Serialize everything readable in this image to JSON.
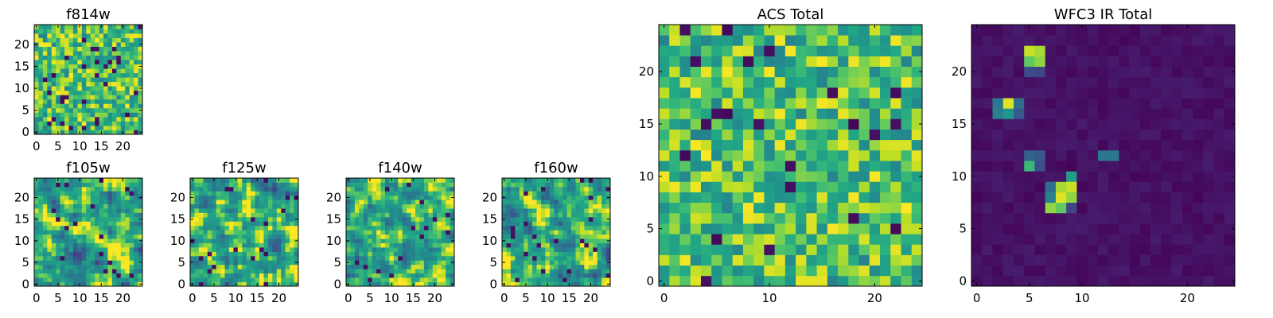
{
  "chart_data": [
    {
      "id": "f814w",
      "type": "heatmap",
      "title": "f814w",
      "colormap": "viridis",
      "grid_size": [
        25,
        25
      ],
      "xlim": [
        -0.5,
        24.5
      ],
      "ylim": [
        -0.5,
        24.5
      ],
      "xticks": [
        0,
        5,
        10,
        15,
        20
      ],
      "yticks": [
        0,
        5,
        10,
        15,
        20
      ],
      "pattern": "uniform noise, mostly green-yellow",
      "seed": 11,
      "values": []
    },
    {
      "id": "f105w",
      "type": "heatmap",
      "title": "f105w",
      "colormap": "viridis",
      "grid_size": [
        25,
        25
      ],
      "xlim": [
        -0.5,
        24.5
      ],
      "ylim": [
        -0.5,
        24.5
      ],
      "xticks": [
        0,
        5,
        10,
        15,
        20
      ],
      "yticks": [
        0,
        5,
        10,
        15,
        20
      ],
      "pattern": "smooth correlated noise",
      "seed": 21,
      "values": []
    },
    {
      "id": "f125w",
      "type": "heatmap",
      "title": "f125w",
      "colormap": "viridis",
      "grid_size": [
        25,
        25
      ],
      "xlim": [
        -0.5,
        24.5
      ],
      "ylim": [
        -0.5,
        24.5
      ],
      "xticks": [
        0,
        5,
        10,
        15,
        20
      ],
      "yticks": [
        0,
        5,
        10,
        15,
        20
      ],
      "pattern": "smooth correlated noise",
      "seed": 31,
      "values": []
    },
    {
      "id": "f140w",
      "type": "heatmap",
      "title": "f140w",
      "colormap": "viridis",
      "grid_size": [
        25,
        25
      ],
      "xlim": [
        -0.5,
        24.5
      ],
      "ylim": [
        -0.5,
        24.5
      ],
      "xticks": [
        0,
        5,
        10,
        15,
        20
      ],
      "yticks": [
        0,
        5,
        10,
        15,
        20
      ],
      "pattern": "smooth correlated noise",
      "seed": 41,
      "values": []
    },
    {
      "id": "f160w",
      "type": "heatmap",
      "title": "f160w",
      "colormap": "viridis",
      "grid_size": [
        25,
        25
      ],
      "xlim": [
        -0.5,
        24.5
      ],
      "ylim": [
        -0.5,
        24.5
      ],
      "xticks": [
        0,
        5,
        10,
        15,
        20
      ],
      "yticks": [
        0,
        5,
        10,
        15,
        20
      ],
      "pattern": "smooth correlated noise",
      "seed": 51,
      "values": []
    },
    {
      "id": "acs_total",
      "type": "heatmap",
      "title": "ACS Total",
      "colormap": "viridis",
      "grid_size": [
        25,
        25
      ],
      "xlim": [
        -0.5,
        24.5
      ],
      "ylim": [
        -0.5,
        24.5
      ],
      "xticks": [
        0,
        10,
        20
      ],
      "yticks": [
        0,
        5,
        10,
        15,
        20
      ],
      "pattern": "uniform noise, mostly green-yellow",
      "seed": 61,
      "values": []
    },
    {
      "id": "wfc3_ir_total",
      "type": "heatmap",
      "title": "WFC3 IR Total",
      "colormap": "viridis",
      "grid_size": [
        25,
        25
      ],
      "xlim": [
        -0.5,
        24.5
      ],
      "ylim": [
        -0.5,
        24.5
      ],
      "xticks": [
        0,
        5,
        10,
        20
      ],
      "yticks": [
        0,
        5,
        10,
        15,
        20
      ],
      "pattern": "dark background with bright sources",
      "seed": 71,
      "values": [],
      "bright_pixels": [
        {
          "x": 5,
          "y": 22,
          "v": 0.95
        },
        {
          "x": 6,
          "y": 22,
          "v": 0.92
        },
        {
          "x": 5,
          "y": 21,
          "v": 0.85
        },
        {
          "x": 6,
          "y": 21,
          "v": 0.9
        },
        {
          "x": 5,
          "y": 20,
          "v": 0.3
        },
        {
          "x": 6,
          "y": 20,
          "v": 0.25
        },
        {
          "x": 3,
          "y": 17,
          "v": 0.97
        },
        {
          "x": 2,
          "y": 17,
          "v": 0.5
        },
        {
          "x": 4,
          "y": 17,
          "v": 0.45
        },
        {
          "x": 3,
          "y": 16,
          "v": 0.65
        },
        {
          "x": 2,
          "y": 16,
          "v": 0.55
        },
        {
          "x": 4,
          "y": 16,
          "v": 0.35
        },
        {
          "x": 5,
          "y": 12,
          "v": 0.4
        },
        {
          "x": 6,
          "y": 12,
          "v": 0.35
        },
        {
          "x": 5,
          "y": 11,
          "v": 0.8
        },
        {
          "x": 6,
          "y": 11,
          "v": 0.3
        },
        {
          "x": 12,
          "y": 12,
          "v": 0.5
        },
        {
          "x": 13,
          "y": 12,
          "v": 0.5
        },
        {
          "x": 9,
          "y": 10,
          "v": 0.7
        },
        {
          "x": 7,
          "y": 9,
          "v": 0.45
        },
        {
          "x": 8,
          "y": 9,
          "v": 0.92
        },
        {
          "x": 9,
          "y": 9,
          "v": 0.95
        },
        {
          "x": 7,
          "y": 8,
          "v": 0.55
        },
        {
          "x": 8,
          "y": 8,
          "v": 0.97
        },
        {
          "x": 9,
          "y": 8,
          "v": 0.9
        },
        {
          "x": 7,
          "y": 7,
          "v": 0.9
        },
        {
          "x": 8,
          "y": 7,
          "v": 0.85
        },
        {
          "x": 9,
          "y": 7,
          "v": 0.25
        }
      ]
    }
  ]
}
